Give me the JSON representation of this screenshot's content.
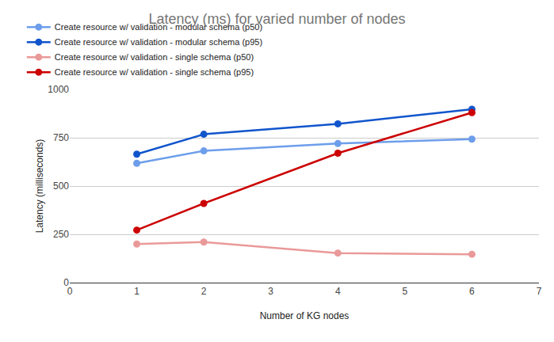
{
  "chart_data": {
    "type": "line",
    "title": "Latency (ms) for varied number of nodes",
    "x_label": "Number of KG nodes",
    "y_label": "Latency (milliseconds)",
    "x": [
      1,
      2,
      4,
      6
    ],
    "series": [
      {
        "name": "Create resource w/ validation - modular schema (p50)",
        "color": "#6d9eeb",
        "values": [
          618,
          682,
          720,
          743
        ]
      },
      {
        "name": "Create resource w/ validation - modular schema (p95)",
        "color": "#1155cc",
        "values": [
          665,
          768,
          822,
          898
        ]
      },
      {
        "name": "Create resource w/ validation - single schema (p50)",
        "color": "#ea9999",
        "values": [
          200,
          210,
          153,
          147
        ]
      },
      {
        "name": "Create resource w/ validation - single schema (p95)",
        "color": "#cc0000",
        "values": [
          272,
          410,
          670,
          880
        ]
      }
    ],
    "xlim": [
      0,
      7
    ],
    "xticks": [
      0,
      1,
      2,
      3,
      4,
      5,
      6,
      7
    ],
    "ylim": [
      0,
      1000
    ],
    "yticks": [
      0,
      250,
      500,
      750,
      1000
    ],
    "grid": true,
    "legend": "top",
    "marker": "circle",
    "line_style": "solid"
  }
}
